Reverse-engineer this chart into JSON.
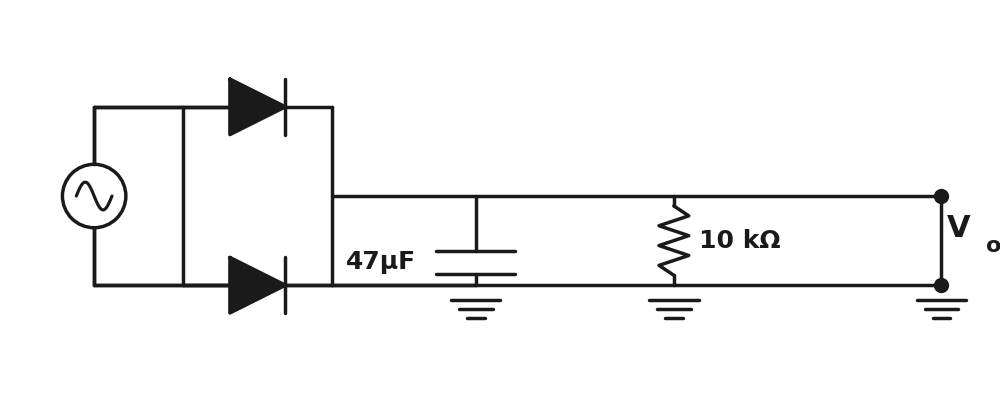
{
  "background": "#ffffff",
  "line_color": "#1a1a1a",
  "lw": 2.5,
  "fig_width": 10.0,
  "fig_height": 3.96,
  "dpi": 100,
  "capacitor_label": "47μF",
  "resistor_label": "10 kΩ",
  "vo_label": "V",
  "vo_sub": "o"
}
